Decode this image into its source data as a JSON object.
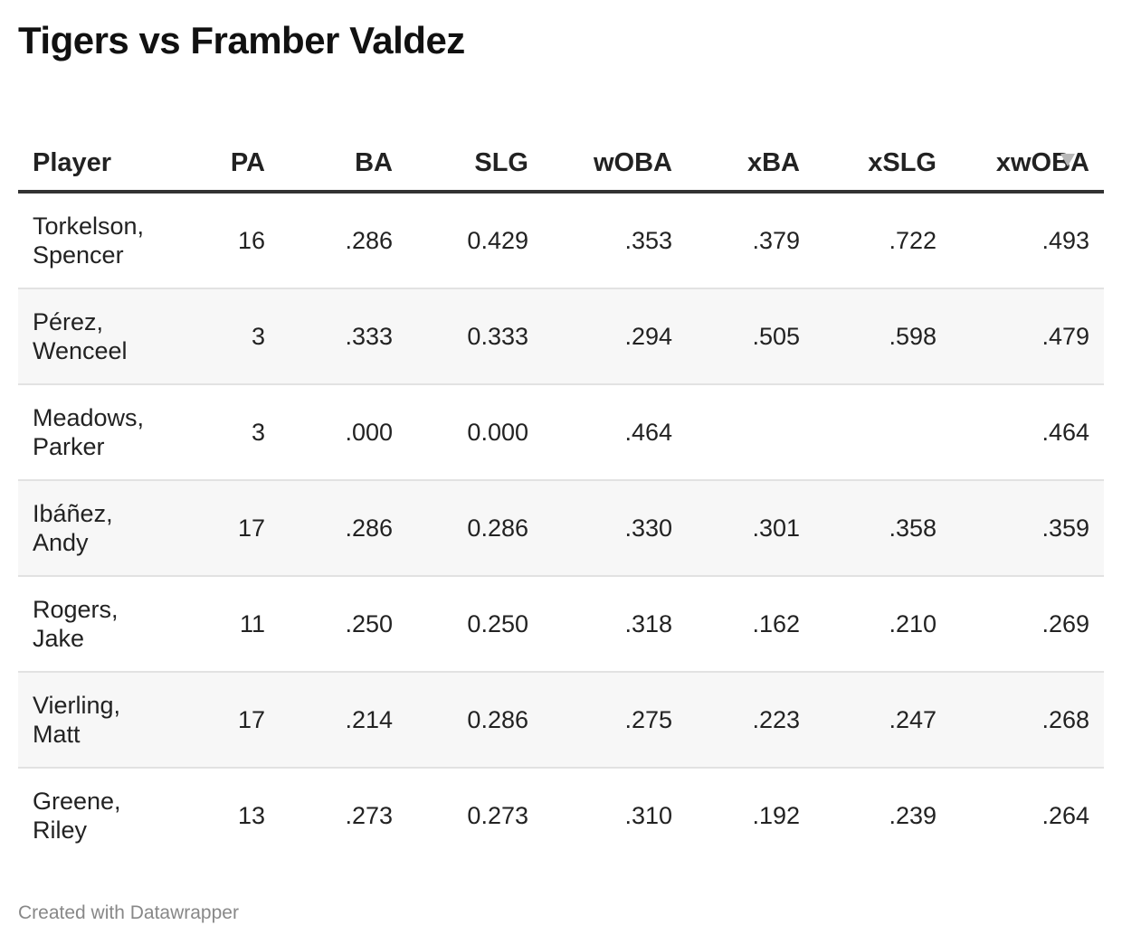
{
  "title": "Tigers vs Framber Valdez",
  "chart_data": {
    "type": "table",
    "title": "Tigers vs Framber Valdez",
    "columns": [
      "Player",
      "PA",
      "BA",
      "SLG",
      "wOBA",
      "xBA",
      "xSLG",
      "xwOBA"
    ],
    "sorted_by": "xwOBA",
    "sort_order": "descending",
    "rows": [
      {
        "player_last": "Torkelson,",
        "player_first": "Spencer",
        "PA": "16",
        "BA": ".286",
        "SLG": "0.429",
        "wOBA": ".353",
        "xBA": ".379",
        "xSLG": ".722",
        "xwOBA": ".493"
      },
      {
        "player_last": "Pérez,",
        "player_first": "Wenceel",
        "PA": "3",
        "BA": ".333",
        "SLG": "0.333",
        "wOBA": ".294",
        "xBA": ".505",
        "xSLG": ".598",
        "xwOBA": ".479"
      },
      {
        "player_last": "Meadows,",
        "player_first": "Parker",
        "PA": "3",
        "BA": ".000",
        "SLG": "0.000",
        "wOBA": ".464",
        "xBA": "",
        "xSLG": "",
        "xwOBA": ".464"
      },
      {
        "player_last": "Ibáñez,",
        "player_first": "Andy",
        "PA": "17",
        "BA": ".286",
        "SLG": "0.286",
        "wOBA": ".330",
        "xBA": ".301",
        "xSLG": ".358",
        "xwOBA": ".359"
      },
      {
        "player_last": "Rogers,",
        "player_first": "Jake",
        "PA": "11",
        "BA": ".250",
        "SLG": "0.250",
        "wOBA": ".318",
        "xBA": ".162",
        "xSLG": ".210",
        "xwOBA": ".269"
      },
      {
        "player_last": "Vierling,",
        "player_first": "Matt",
        "PA": "17",
        "BA": ".214",
        "SLG": "0.286",
        "wOBA": ".275",
        "xBA": ".223",
        "xSLG": ".247",
        "xwOBA": ".268"
      },
      {
        "player_last": "Greene,",
        "player_first": "Riley",
        "PA": "13",
        "BA": ".273",
        "SLG": "0.273",
        "wOBA": ".310",
        "xBA": ".192",
        "xSLG": ".239",
        "xwOBA": ".264"
      }
    ]
  },
  "footer": "Created with Datawrapper",
  "icons": {
    "sort": "sort-descending-icon"
  },
  "colors": {
    "header_rule": "#333333",
    "row_alt_bg": "#f7f7f7",
    "row_divider": "#e2e2e2",
    "footer_text": "#888888",
    "sort_icon": "#b8b8b8"
  }
}
